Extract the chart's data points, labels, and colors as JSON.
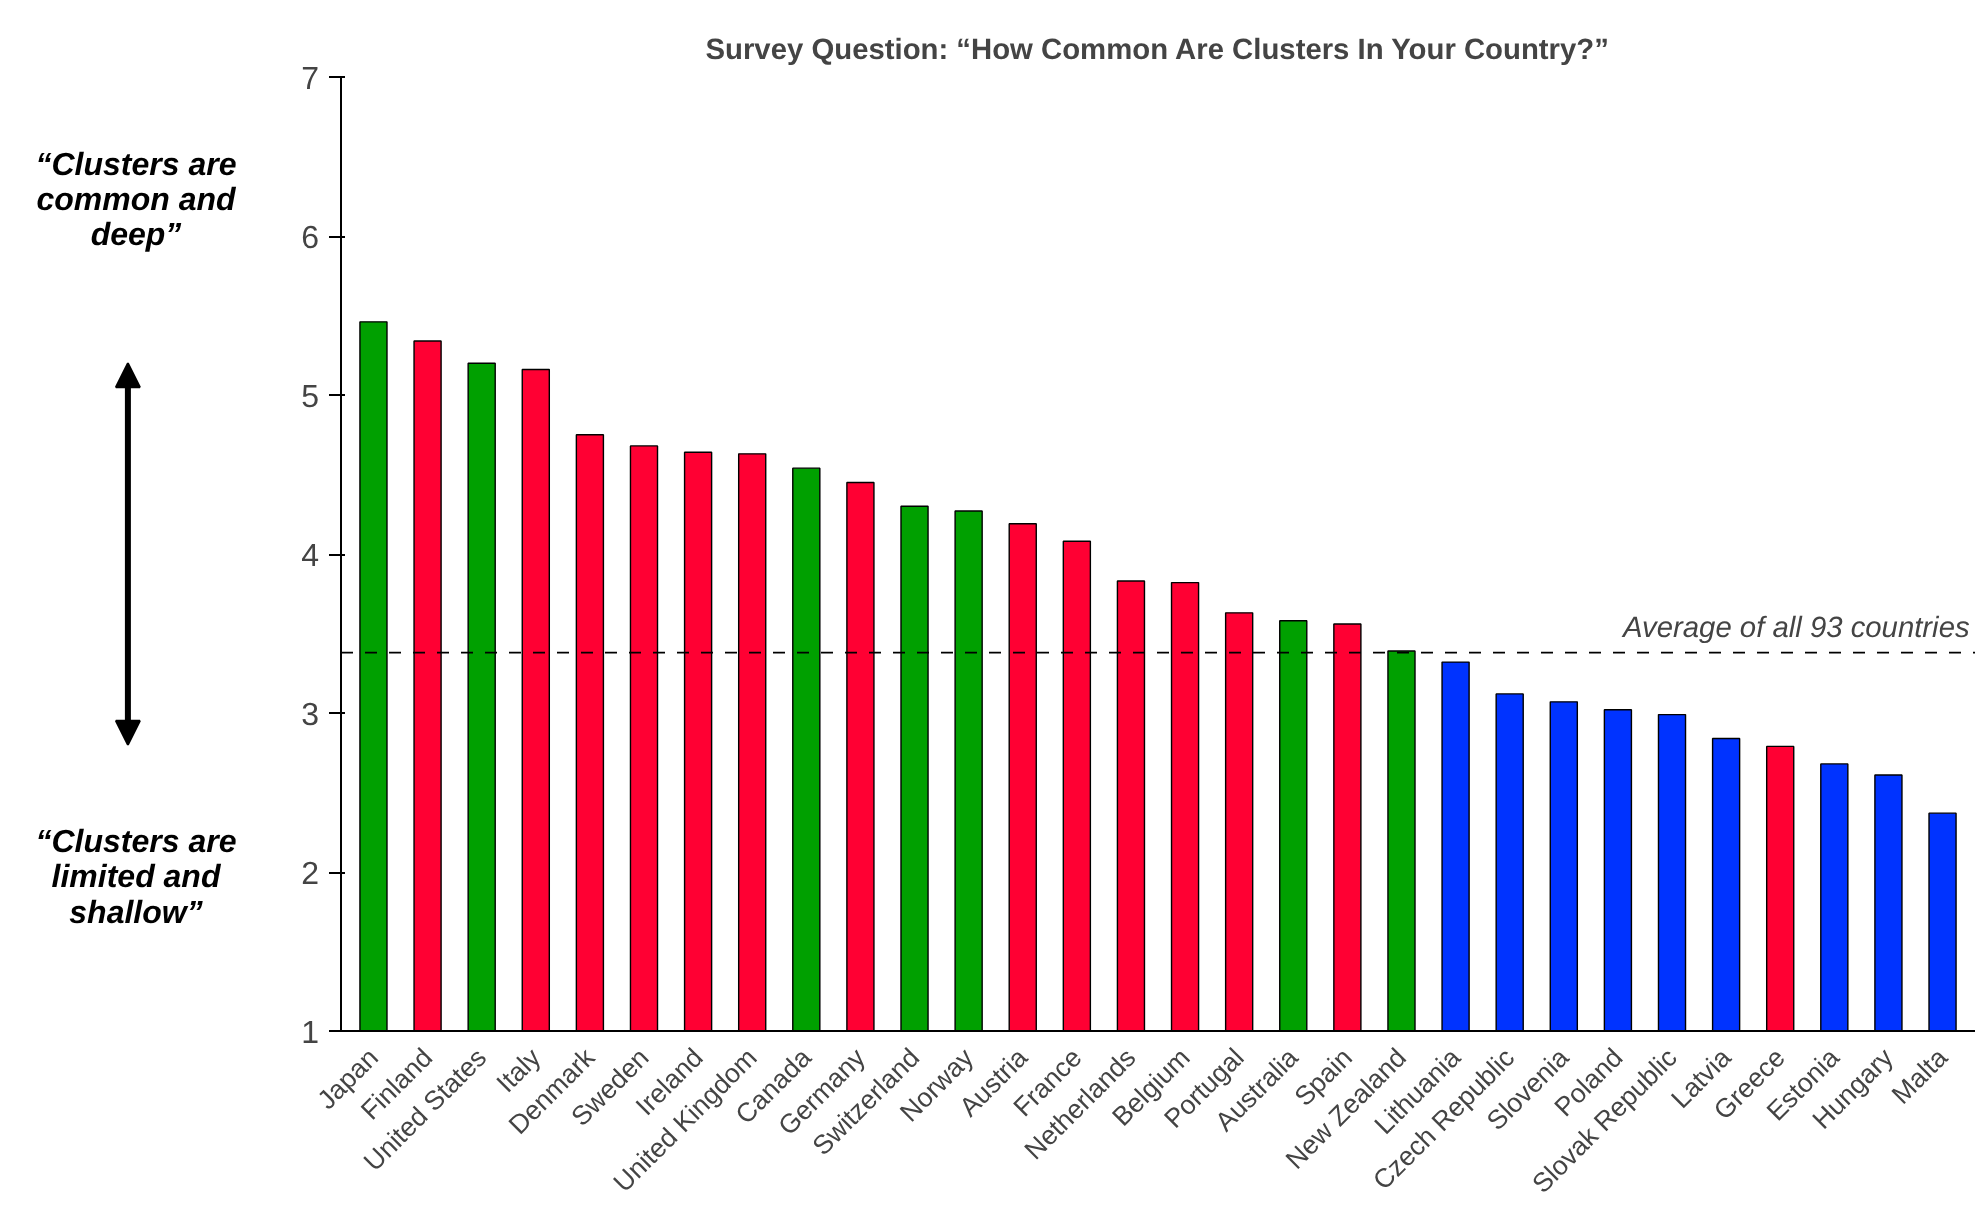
{
  "chart_data": {
    "type": "bar",
    "title": "Survey Question: “How Common Are Clusters In Your Country?”",
    "categories": [
      "Japan",
      "Finland",
      "United States",
      "Italy",
      "Denmark",
      "Sweden",
      "Ireland",
      "United Kingdom",
      "Canada",
      "Germany",
      "Switzerland",
      "Norway",
      "Austria",
      "France",
      "Netherlands",
      "Belgium",
      "Portugal",
      "Australia",
      "Spain",
      "New Zealand",
      "Lithuania",
      "Czech Republic",
      "Slovenia",
      "Poland",
      "Slovak Republic",
      "Latvia",
      "Greece",
      "Estonia",
      "Hungary",
      "Malta"
    ],
    "values": [
      5.46,
      5.34,
      5.2,
      5.16,
      4.75,
      4.68,
      4.64,
      4.63,
      4.54,
      4.45,
      4.3,
      4.27,
      4.19,
      4.08,
      3.83,
      3.82,
      3.63,
      3.58,
      3.56,
      3.39,
      3.32,
      3.12,
      3.07,
      3.02,
      2.99,
      2.84,
      2.79,
      2.68,
      2.61,
      2.37
    ],
    "colors": [
      "#00a000",
      "#ff0033",
      "#00a000",
      "#ff0033",
      "#ff0033",
      "#ff0033",
      "#ff0033",
      "#ff0033",
      "#00a000",
      "#ff0033",
      "#00a000",
      "#00a000",
      "#ff0033",
      "#ff0033",
      "#ff0033",
      "#ff0033",
      "#ff0033",
      "#00a000",
      "#ff0033",
      "#00a000",
      "#0033ff",
      "#0033ff",
      "#0033ff",
      "#0033ff",
      "#0033ff",
      "#0033ff",
      "#ff0033",
      "#0033ff",
      "#0033ff",
      "#0033ff"
    ],
    "ylim": [
      1,
      7
    ],
    "yticks": [
      1,
      2,
      3,
      4,
      5,
      6,
      7
    ],
    "grid": false,
    "ref_lines": [
      {
        "axis": "y",
        "value": 3.38,
        "label": "Average of all 93 countries",
        "line_style": "dashed"
      }
    ],
    "annotations": [
      "“Clusters are common and deep”",
      "“Clusters are limited and shallow”"
    ]
  }
}
